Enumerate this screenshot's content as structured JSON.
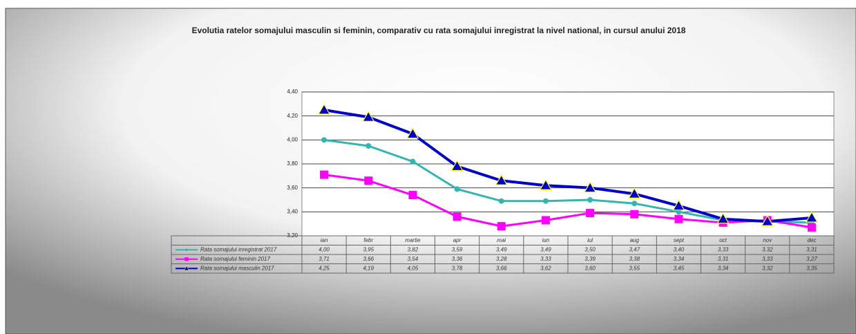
{
  "chart_data": {
    "type": "line",
    "title": "Evolutia ratelor somajului masculin si feminin, comparativ cu rata somajului  inregistrat la nivel national, in cursul anului 2018",
    "categories": [
      "ian",
      "febr",
      "martie",
      "apr",
      "mai",
      "iun",
      "iul",
      "aug",
      "sept",
      "oct",
      "nov",
      "dec"
    ],
    "series": [
      {
        "name": "Rata somajului inregistrat 2017",
        "color": "#33b5b0",
        "marker": "circle",
        "values": [
          4.0,
          3.95,
          3.82,
          3.59,
          3.49,
          3.49,
          3.5,
          3.47,
          3.4,
          3.33,
          3.32,
          3.31
        ],
        "value_labels": [
          "4,00",
          "3,95",
          "3,82",
          "3,59",
          "3,49",
          "3,49",
          "3,50",
          "3,47",
          "3,40",
          "3,33",
          "3,32",
          "3,31"
        ]
      },
      {
        "name": "Rata somajului feminin 2017",
        "color": "#ff00ff",
        "marker": "square",
        "values": [
          3.71,
          3.66,
          3.54,
          3.36,
          3.28,
          3.33,
          3.39,
          3.38,
          3.34,
          3.31,
          3.33,
          3.27
        ],
        "value_labels": [
          "3,71",
          "3,66",
          "3,54",
          "3,36",
          "3,28",
          "3,33",
          "3,39",
          "3,38",
          "3,34",
          "3,31",
          "3,33",
          "3,27"
        ]
      },
      {
        "name": "Rata somajului masculin 2017",
        "color": "#0000cc",
        "marker": "triangle",
        "values": [
          4.25,
          4.19,
          4.05,
          3.78,
          3.66,
          3.62,
          3.6,
          3.55,
          3.45,
          3.34,
          3.32,
          3.35
        ],
        "value_labels": [
          "4,25",
          "4,19",
          "4,05",
          "3,78",
          "3,66",
          "3,62",
          "3,60",
          "3,55",
          "3,45",
          "3,34",
          "3,32",
          "3,35"
        ]
      }
    ],
    "ylim": [
      3.2,
      4.4
    ],
    "yticks": [
      {
        "value": 3.2,
        "label": "3,20"
      },
      {
        "value": 3.4,
        "label": "3,40"
      },
      {
        "value": 3.6,
        "label": "3,60"
      },
      {
        "value": 3.8,
        "label": "3,80"
      },
      {
        "value": 4.0,
        "label": "4,00"
      },
      {
        "value": 4.2,
        "label": "4,20"
      },
      {
        "value": 4.4,
        "label": "4,40"
      }
    ],
    "grid": true
  }
}
